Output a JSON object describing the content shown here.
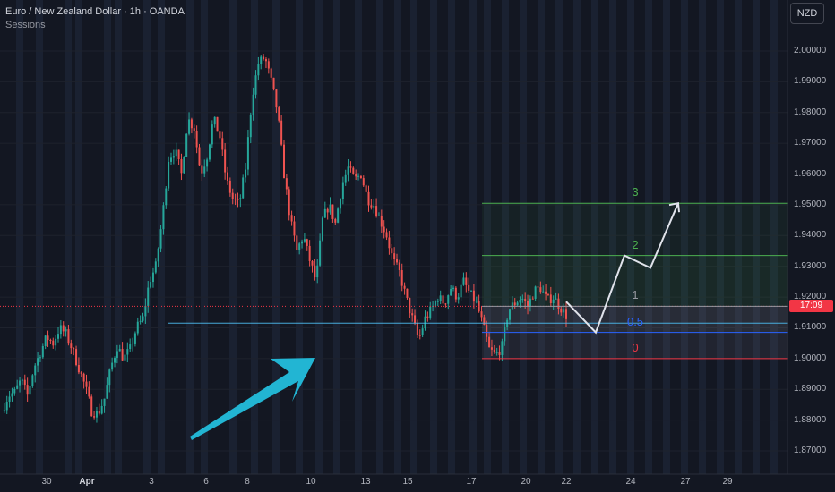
{
  "header": {
    "title": "Euro / New Zealand Dollar · 1h · OANDA",
    "indicator": "Sessions"
  },
  "currency_button": "NZD",
  "price_tag": "17:09",
  "colors": {
    "background": "#131722",
    "up_candle": "#26a69a",
    "down_candle": "#ef5350",
    "session_band": "#1c2233",
    "fib_green": "#4caf50",
    "fib_grey": "#9598a1",
    "fib_blue": "#2962ff",
    "fib_red": "#f23645",
    "arrow_cyan": "#22b5d3",
    "projection": "#e0e3eb",
    "price_tag": "#f23645"
  },
  "chart_data": {
    "type": "candlestick",
    "symbol": "EURNZD",
    "timeframe": "1h",
    "y_axis": {
      "ticks": [
        "2.00000",
        "1.99000",
        "1.98000",
        "1.97000",
        "1.96000",
        "1.95000",
        "1.94000",
        "1.93000",
        "1.92000",
        "1.91000",
        "1.90000",
        "1.89000",
        "1.88000",
        "1.87000"
      ],
      "ylim": [
        1.864,
        2.0165
      ]
    },
    "x_axis": {
      "ticks": [
        {
          "label": "30",
          "bold": false
        },
        {
          "label": "Apr",
          "bold": true
        },
        {
          "label": "3",
          "bold": false
        },
        {
          "label": "6",
          "bold": false
        },
        {
          "label": "8",
          "bold": false
        },
        {
          "label": "10",
          "bold": false
        },
        {
          "label": "13",
          "bold": false
        },
        {
          "label": "15",
          "bold": false
        },
        {
          "label": "17",
          "bold": false
        },
        {
          "label": "20",
          "bold": false
        },
        {
          "label": "22",
          "bold": false
        },
        {
          "label": "24",
          "bold": false
        },
        {
          "label": "27",
          "bold": false
        },
        {
          "label": "29",
          "bold": false
        }
      ]
    },
    "price_path": [
      1.883,
      1.888,
      1.889,
      1.893,
      1.888,
      1.897,
      1.902,
      1.907,
      1.905,
      1.91,
      1.908,
      1.903,
      1.897,
      1.891,
      1.883,
      1.882,
      1.887,
      1.897,
      1.904,
      1.9,
      1.903,
      1.91,
      1.913,
      1.925,
      1.93,
      1.945,
      1.965,
      1.968,
      1.96,
      1.978,
      1.975,
      1.96,
      1.966,
      1.978,
      1.972,
      1.958,
      1.952,
      1.95,
      1.962,
      1.985,
      1.996,
      1.998,
      1.99,
      1.98,
      1.96,
      1.945,
      1.935,
      1.94,
      1.932,
      1.925,
      1.945,
      1.95,
      1.944,
      1.956,
      1.962,
      1.958,
      1.96,
      1.952,
      1.95,
      1.945,
      1.94,
      1.932,
      1.928,
      1.92,
      1.913,
      1.906,
      1.913,
      1.916,
      1.92,
      1.918,
      1.923,
      1.92,
      1.925,
      1.921,
      1.918,
      1.911,
      1.903,
      1.901,
      1.904,
      1.916,
      1.918,
      1.92,
      1.917,
      1.922,
      1.923,
      1.919,
      1.92,
      1.917,
      1.914
    ],
    "horizontal_levels": [
      {
        "name": "support",
        "price": 1.9115,
        "color": "#4fc3f7"
      },
      {
        "name": "current-price",
        "price": 1.917,
        "color": "#f23645",
        "dotted": true
      }
    ],
    "fib_extension": {
      "levels": [
        {
          "label": "3",
          "price": 1.9505,
          "color": "#4caf50"
        },
        {
          "label": "2",
          "price": 1.9335,
          "color": "#4caf50"
        },
        {
          "label": "1",
          "price": 1.917,
          "color": "#9598a1"
        },
        {
          "label": "0.5",
          "price": 1.9085,
          "color": "#2962ff"
        },
        {
          "label": "0",
          "price": 1.9,
          "color": "#f23645"
        }
      ]
    },
    "projection_path": [
      1.9185,
      1.9085,
      1.9335,
      1.9295,
      1.9505
    ],
    "annotations": [
      {
        "type": "arrow",
        "direction": "up-right",
        "color": "#22b5d3"
      }
    ]
  }
}
